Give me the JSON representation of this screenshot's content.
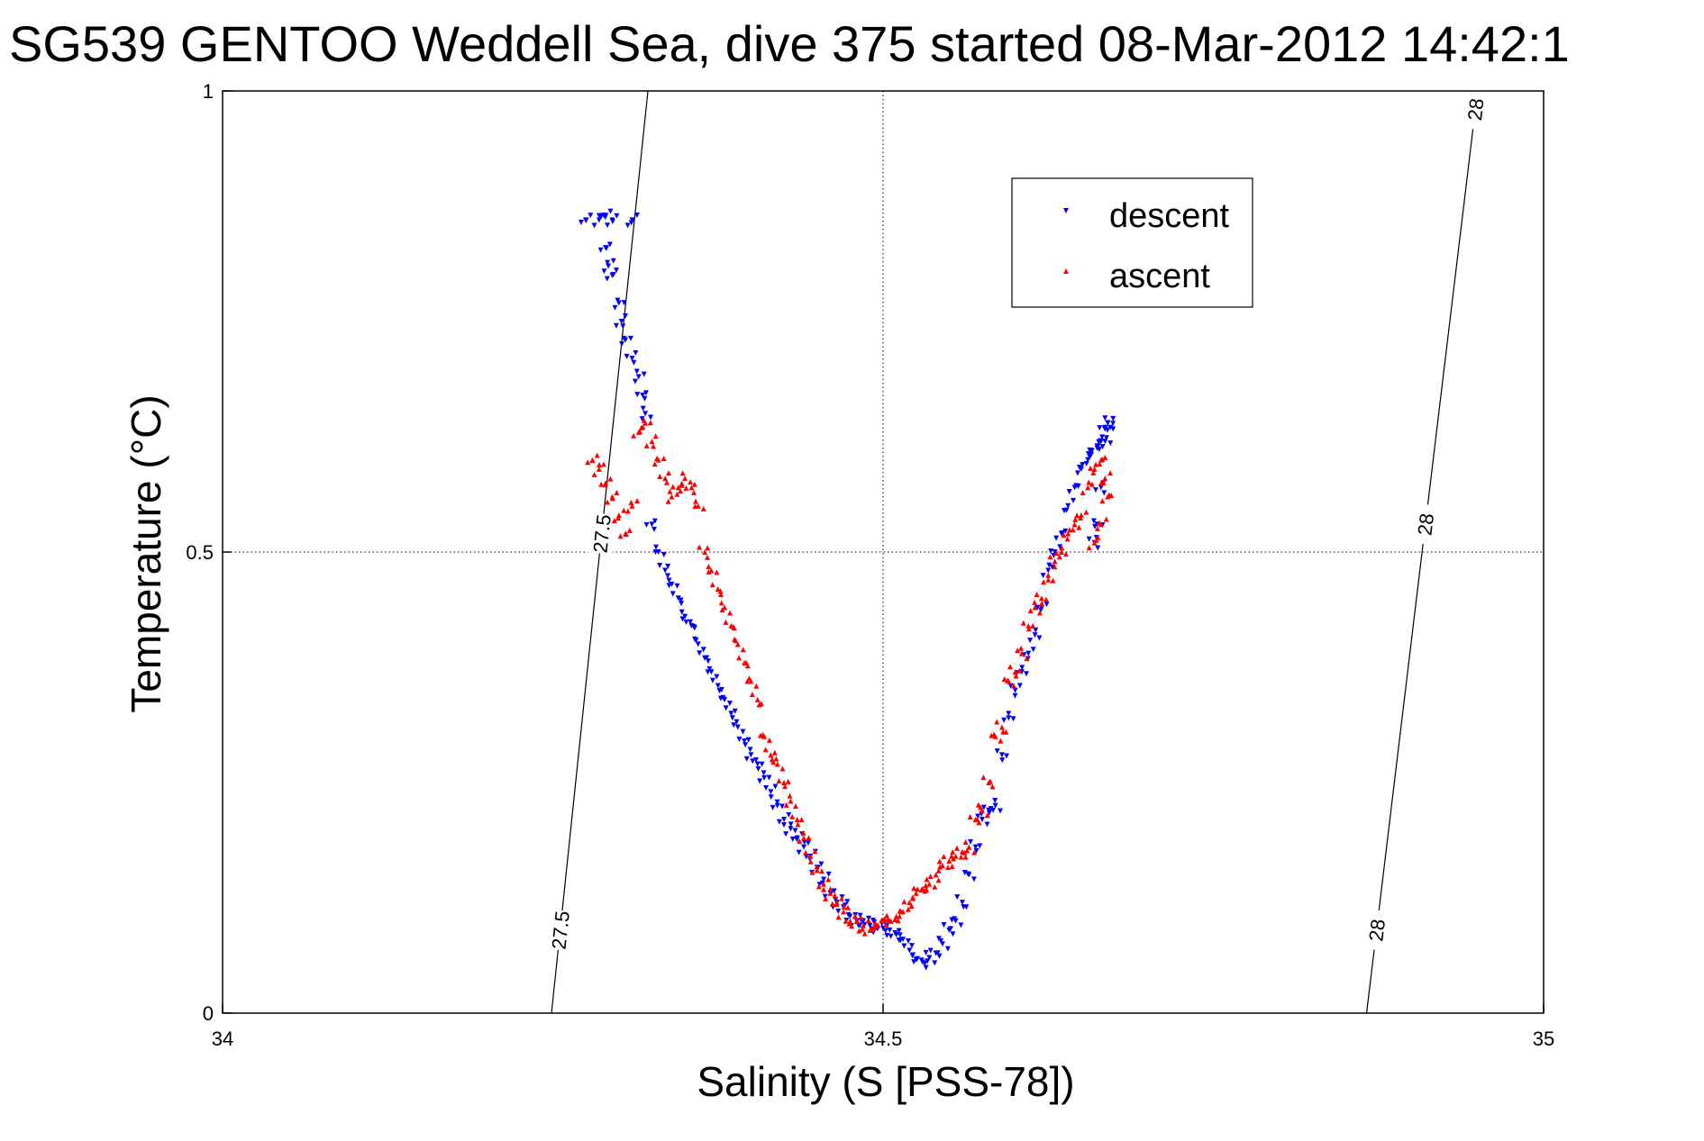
{
  "chart_data": {
    "type": "scatter",
    "title": "SG539 GENTOO Weddell Sea, dive 375 started 08-Mar-2012 14:42:1",
    "xlabel": "Salinity (S [PSS-78])",
    "ylabel": "Temperature (°C)",
    "xlim": [
      34,
      35
    ],
    "ylim": [
      0,
      1
    ],
    "xticks": [
      "34",
      "34.5",
      "35"
    ],
    "yticks": [
      "0",
      "0.5",
      "1"
    ],
    "grid": true,
    "legend_position": "top-right",
    "isopycnals": [
      {
        "label": "27.5",
        "points": [
          [
            34.249,
            0.0
          ],
          [
            34.322,
            1.0
          ]
        ],
        "labels_at": [
          0.09,
          0.52
        ]
      },
      {
        "label": "28",
        "points": [
          [
            34.866,
            0.0
          ],
          [
            34.95,
            1.0
          ]
        ],
        "labels_at": [
          0.09,
          0.53,
          0.98
        ]
      }
    ],
    "series": [
      {
        "name": "descent",
        "color": "#0000ff",
        "marker": "triangle-down",
        "x": [
          34.275,
          34.285,
          34.29,
          34.295,
          34.31,
          34.29,
          34.292,
          34.295,
          34.3,
          34.302,
          34.305,
          34.31,
          34.315,
          34.318,
          34.32,
          34.325,
          34.33,
          34.335,
          34.34,
          34.345,
          34.35,
          34.355,
          34.36,
          34.365,
          34.37,
          34.375,
          34.38,
          34.385,
          34.39,
          34.395,
          34.4,
          34.405,
          34.41,
          34.415,
          34.42,
          34.425,
          34.43,
          34.435,
          34.44,
          34.445,
          34.45,
          34.455,
          34.46,
          34.465,
          34.47,
          34.475,
          34.48,
          34.485,
          34.49,
          34.495,
          34.5,
          34.505,
          34.51,
          34.515,
          34.52,
          34.525,
          34.53,
          34.535,
          34.54,
          34.545,
          34.55,
          34.555,
          34.56,
          34.565,
          34.57,
          34.575,
          34.58,
          34.585,
          34.59,
          34.595,
          34.6,
          34.605,
          34.61,
          34.615,
          34.62,
          34.625,
          34.63,
          34.635,
          34.64,
          34.645,
          34.65,
          34.655,
          34.658,
          34.662,
          34.665,
          34.668,
          34.67,
          34.672,
          34.668,
          34.665,
          34.662,
          34.66
        ],
        "y": [
          0.86,
          0.86,
          0.865,
          0.86,
          0.86,
          0.83,
          0.81,
          0.8,
          0.77,
          0.75,
          0.73,
          0.71,
          0.69,
          0.67,
          0.65,
          0.53,
          0.5,
          0.48,
          0.465,
          0.45,
          0.43,
          0.42,
          0.4,
          0.385,
          0.37,
          0.355,
          0.34,
          0.325,
          0.31,
          0.295,
          0.28,
          0.27,
          0.255,
          0.24,
          0.225,
          0.21,
          0.2,
          0.19,
          0.18,
          0.17,
          0.158,
          0.145,
          0.13,
          0.12,
          0.115,
          0.105,
          0.1,
          0.1,
          0.095,
          0.093,
          0.092,
          0.09,
          0.085,
          0.08,
          0.068,
          0.058,
          0.055,
          0.06,
          0.065,
          0.075,
          0.09,
          0.1,
          0.12,
          0.15,
          0.18,
          0.21,
          0.22,
          0.225,
          0.28,
          0.32,
          0.35,
          0.37,
          0.39,
          0.41,
          0.44,
          0.48,
          0.5,
          0.52,
          0.55,
          0.57,
          0.59,
          0.6,
          0.61,
          0.615,
          0.62,
          0.635,
          0.64,
          0.635,
          0.62,
          0.57,
          0.53,
          0.51
        ]
      },
      {
        "name": "ascent",
        "color": "#ff0000",
        "marker": "triangle-up",
        "x": [
          34.28,
          34.285,
          34.29,
          34.295,
          34.3,
          34.305,
          34.31,
          34.315,
          34.32,
          34.325,
          34.33,
          34.335,
          34.34,
          34.345,
          34.35,
          34.355,
          34.36,
          34.365,
          34.37,
          34.375,
          34.38,
          34.385,
          34.39,
          34.395,
          34.4,
          34.405,
          34.41,
          34.415,
          34.42,
          34.425,
          34.43,
          34.435,
          34.44,
          34.445,
          34.45,
          34.455,
          34.46,
          34.465,
          34.47,
          34.475,
          34.48,
          34.485,
          34.49,
          34.495,
          34.5,
          34.505,
          34.51,
          34.515,
          34.52,
          34.525,
          34.53,
          34.535,
          34.54,
          34.545,
          34.55,
          34.555,
          34.56,
          34.565,
          34.57,
          34.575,
          34.58,
          34.585,
          34.59,
          34.595,
          34.6,
          34.605,
          34.61,
          34.615,
          34.62,
          34.625,
          34.63,
          34.635,
          34.64,
          34.645,
          34.65,
          34.655,
          34.66,
          34.665,
          34.668,
          34.67,
          34.665,
          34.66
        ],
        "y": [
          0.6,
          0.59,
          0.575,
          0.56,
          0.54,
          0.52,
          0.55,
          0.63,
          0.64,
          0.62,
          0.6,
          0.58,
          0.56,
          0.57,
          0.58,
          0.57,
          0.55,
          0.5,
          0.48,
          0.46,
          0.44,
          0.42,
          0.4,
          0.38,
          0.36,
          0.34,
          0.3,
          0.28,
          0.27,
          0.25,
          0.23,
          0.21,
          0.19,
          0.17,
          0.155,
          0.14,
          0.13,
          0.12,
          0.11,
          0.1,
          0.1,
          0.095,
          0.09,
          0.095,
          0.1,
          0.1,
          0.105,
          0.11,
          0.12,
          0.13,
          0.135,
          0.14,
          0.15,
          0.16,
          0.165,
          0.17,
          0.175,
          0.18,
          0.21,
          0.22,
          0.25,
          0.3,
          0.31,
          0.36,
          0.37,
          0.39,
          0.42,
          0.44,
          0.45,
          0.47,
          0.49,
          0.5,
          0.52,
          0.53,
          0.54,
          0.57,
          0.59,
          0.6,
          0.58,
          0.56,
          0.53,
          0.51
        ]
      }
    ]
  }
}
